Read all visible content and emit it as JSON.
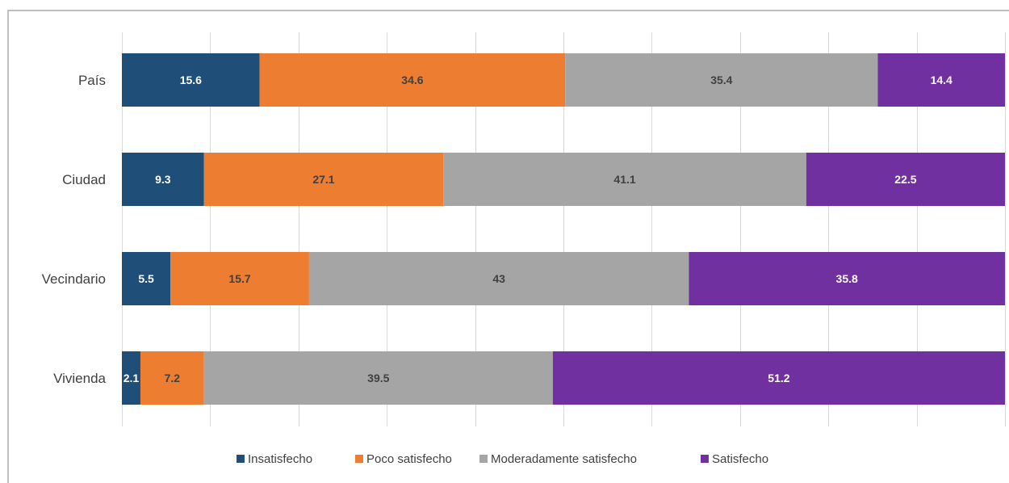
{
  "chart_data": {
    "type": "bar",
    "orientation": "horizontal",
    "stacked": true,
    "categories": [
      "País",
      "Ciudad",
      "Vecindario",
      "Vivienda"
    ],
    "series": [
      {
        "name": "Insatisfecho",
        "color": "#1f4e79",
        "label_color": "#ffffff",
        "values": [
          15.6,
          9.3,
          5.5,
          2.1
        ]
      },
      {
        "name": "Poco satisfecho",
        "color": "#ed7d31",
        "label_color": "#404040",
        "values": [
          34.6,
          27.1,
          15.7,
          7.2
        ]
      },
      {
        "name": "Moderadamente satisfecho",
        "color": "#a5a5a5",
        "label_color": "#404040",
        "values": [
          35.4,
          41.1,
          43,
          39.5
        ]
      },
      {
        "name": "Satisfecho",
        "color": "#7030a0",
        "label_color": "#ffffff",
        "values": [
          14.4,
          22.5,
          35.8,
          51.2
        ]
      }
    ],
    "xlim": [
      0,
      100
    ],
    "grid": true,
    "legend_position": "bottom"
  }
}
